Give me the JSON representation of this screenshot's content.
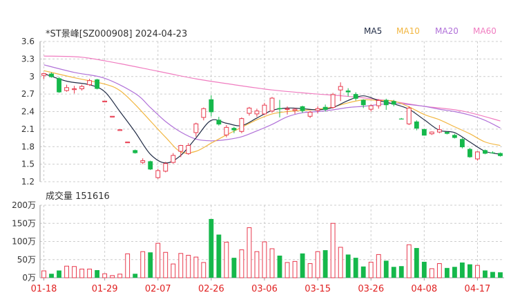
{
  "header": {
    "title": "*ST景峰[SZ000908] 2024-04-23",
    "volume_label": "成交量 151616"
  },
  "legend": [
    {
      "name": "MA5",
      "color": "#1f2a44"
    },
    {
      "name": "MA10",
      "color": "#f2b640"
    },
    {
      "name": "MA20",
      "color": "#b070d8"
    },
    {
      "name": "MA60",
      "color": "#f07cc0"
    }
  ],
  "colors": {
    "up": "#e8374b",
    "down": "#15b84b",
    "grid": "#cccccc",
    "axis_text": "#333333",
    "date_text": "#e02020"
  },
  "chart_data": [
    {
      "type": "candlestick",
      "title": "*ST景峰[SZ000908] 2024-04-23",
      "y_ticks": [
        "3.6",
        "3.3",
        "3",
        "2.7",
        "2.4",
        "2.1",
        "1.8",
        "1.5",
        "1.2"
      ],
      "ylim": [
        1.2,
        3.6
      ],
      "x_labels": [
        "01-18",
        "01-29",
        "02-07",
        "02-26",
        "03-06",
        "03-15",
        "03-26",
        "04-08",
        "04-17"
      ],
      "x_label_index": [
        0,
        8,
        15,
        22,
        29,
        36,
        43,
        50,
        57
      ],
      "candles": [
        [
          3.02,
          3.05,
          2.96,
          3.06
        ],
        [
          3.05,
          2.99,
          2.98,
          3.07
        ],
        [
          2.97,
          2.73,
          2.72,
          2.99
        ],
        [
          2.76,
          2.81,
          2.74,
          2.86
        ],
        [
          2.78,
          2.79,
          2.71,
          2.84
        ],
        [
          2.79,
          2.83,
          2.76,
          2.86
        ],
        [
          2.86,
          2.93,
          2.84,
          2.96
        ],
        [
          2.95,
          2.79,
          2.78,
          2.96
        ],
        [
          2.58,
          2.58,
          2.58,
          2.58
        ],
        [
          2.32,
          2.32,
          2.32,
          2.32
        ],
        [
          2.09,
          2.09,
          2.09,
          2.09
        ],
        [
          1.88,
          1.88,
          1.88,
          1.88
        ],
        [
          1.74,
          1.69,
          1.68,
          1.75
        ],
        [
          1.53,
          1.56,
          1.5,
          1.6
        ],
        [
          1.55,
          1.41,
          1.4,
          1.56
        ],
        [
          1.27,
          1.39,
          1.25,
          1.42
        ],
        [
          1.38,
          1.51,
          1.36,
          1.54
        ],
        [
          1.53,
          1.65,
          1.51,
          1.69
        ],
        [
          1.72,
          1.82,
          1.62,
          1.83
        ],
        [
          1.68,
          1.82,
          1.66,
          1.86
        ],
        [
          2.04,
          2.19,
          1.97,
          2.21
        ],
        [
          2.3,
          2.45,
          2.25,
          2.47
        ],
        [
          2.61,
          2.39,
          2.32,
          2.68
        ],
        [
          2.26,
          2.18,
          2.16,
          2.31
        ],
        [
          2.0,
          2.13,
          1.96,
          2.17
        ],
        [
          2.12,
          2.08,
          2.03,
          2.14
        ],
        [
          2.06,
          2.28,
          2.03,
          2.3
        ],
        [
          2.37,
          2.46,
          2.33,
          2.48
        ],
        [
          2.36,
          2.41,
          2.31,
          2.45
        ],
        [
          2.36,
          2.51,
          2.34,
          2.55
        ],
        [
          2.41,
          2.63,
          2.38,
          2.65
        ],
        [
          2.46,
          2.44,
          2.3,
          2.6
        ],
        [
          2.44,
          2.45,
          2.35,
          2.49
        ],
        [
          2.42,
          2.44,
          2.36,
          2.46
        ],
        [
          2.49,
          2.41,
          2.38,
          2.5
        ],
        [
          2.32,
          2.39,
          2.29,
          2.41
        ],
        [
          2.42,
          2.45,
          2.37,
          2.49
        ],
        [
          2.48,
          2.43,
          2.4,
          2.52
        ],
        [
          2.47,
          2.69,
          2.45,
          2.72
        ],
        [
          2.77,
          2.83,
          2.58,
          2.9
        ],
        [
          2.76,
          2.73,
          2.66,
          2.8
        ],
        [
          2.7,
          2.62,
          2.59,
          2.73
        ],
        [
          2.6,
          2.51,
          2.46,
          2.61
        ],
        [
          2.44,
          2.5,
          2.4,
          2.52
        ],
        [
          2.5,
          2.59,
          2.45,
          2.61
        ],
        [
          2.6,
          2.51,
          2.43,
          2.62
        ],
        [
          2.58,
          2.52,
          2.49,
          2.6
        ],
        [
          2.28,
          2.27,
          2.27,
          2.29
        ],
        [
          2.19,
          2.46,
          2.17,
          2.49
        ],
        [
          2.23,
          2.11,
          2.08,
          2.25
        ],
        [
          2.1,
          1.99,
          1.99,
          2.11
        ],
        [
          2.02,
          2.05,
          2.0,
          2.06
        ],
        [
          2.05,
          2.09,
          2.03,
          2.17
        ],
        [
          2.05,
          2.02,
          2.01,
          2.06
        ],
        [
          2.0,
          1.95,
          1.94,
          2.02
        ],
        [
          1.93,
          1.79,
          1.77,
          1.95
        ],
        [
          1.76,
          1.62,
          1.61,
          1.78
        ],
        [
          1.59,
          1.71,
          1.56,
          1.72
        ],
        [
          1.74,
          1.68,
          1.67,
          1.75
        ],
        [
          1.7,
          1.69,
          1.68,
          1.72
        ],
        [
          1.69,
          1.64,
          1.63,
          1.7
        ]
      ],
      "ma_series": [
        {
          "name": "MA5",
          "color": "#1f2a44",
          "x": [
            0,
            3,
            6,
            8,
            10,
            12,
            14,
            16,
            18,
            20,
            22,
            24,
            26,
            28,
            30,
            32,
            34,
            36,
            38,
            40,
            42,
            44,
            46,
            48,
            50,
            52,
            54,
            56,
            58,
            60
          ],
          "values": [
            3.05,
            2.92,
            2.86,
            2.74,
            2.4,
            2.05,
            1.67,
            1.52,
            1.65,
            1.95,
            2.25,
            2.2,
            2.16,
            2.29,
            2.42,
            2.46,
            2.45,
            2.43,
            2.47,
            2.59,
            2.67,
            2.59,
            2.53,
            2.44,
            2.26,
            2.08,
            2.04,
            1.88,
            1.72,
            1.67
          ]
        },
        {
          "name": "MA10",
          "color": "#f2b640",
          "x": [
            0,
            4,
            8,
            10,
            12,
            14,
            16,
            18,
            20,
            22,
            24,
            26,
            28,
            30,
            32,
            34,
            36,
            38,
            40,
            42,
            44,
            46,
            48,
            50,
            52,
            54,
            56,
            58,
            60
          ],
          "values": [
            3.1,
            2.98,
            2.87,
            2.76,
            2.52,
            2.24,
            1.96,
            1.71,
            1.72,
            1.86,
            2.0,
            2.13,
            2.26,
            2.36,
            2.4,
            2.42,
            2.44,
            2.48,
            2.55,
            2.6,
            2.59,
            2.58,
            2.48,
            2.35,
            2.26,
            2.14,
            2.02,
            1.88,
            1.82
          ]
        },
        {
          "name": "MA20",
          "color": "#b070d8",
          "x": [
            0,
            4,
            8,
            12,
            14,
            16,
            18,
            20,
            22,
            24,
            26,
            28,
            30,
            32,
            34,
            36,
            38,
            40,
            42,
            44,
            46,
            48,
            50,
            52,
            54,
            56,
            58,
            60
          ],
          "values": [
            3.2,
            3.07,
            2.97,
            2.71,
            2.47,
            2.23,
            2.05,
            1.93,
            1.9,
            1.92,
            1.97,
            2.07,
            2.18,
            2.31,
            2.38,
            2.4,
            2.43,
            2.47,
            2.49,
            2.52,
            2.54,
            2.52,
            2.49,
            2.44,
            2.4,
            2.34,
            2.25,
            2.12
          ]
        },
        {
          "name": "MA60",
          "color": "#f07cc0",
          "x": [
            0,
            5,
            10,
            15,
            20,
            25,
            30,
            35,
            40,
            45,
            50,
            55,
            60
          ],
          "values": [
            3.35,
            3.33,
            3.22,
            3.09,
            2.96,
            2.86,
            2.77,
            2.71,
            2.66,
            2.59,
            2.49,
            2.41,
            2.24
          ]
        }
      ]
    },
    {
      "type": "bar",
      "title": "成交量 151616",
      "y_ticks": [
        "200万",
        "150万",
        "100万",
        "50万",
        "0万"
      ],
      "ylim": [
        0,
        200
      ],
      "unit": "万",
      "values": [
        19,
        11,
        20,
        32,
        31,
        24,
        24,
        21,
        11,
        6,
        10,
        66,
        11,
        72,
        70,
        95,
        70,
        38,
        67,
        62,
        57,
        42,
        162,
        119,
        98,
        55,
        77,
        138,
        72,
        99,
        80,
        61,
        42,
        45,
        67,
        39,
        72,
        76,
        150,
        84,
        64,
        55,
        31,
        43,
        64,
        47,
        30,
        32,
        91,
        82,
        44,
        25,
        39,
        27,
        30,
        42,
        37,
        34,
        20,
        16,
        15
      ]
    }
  ]
}
